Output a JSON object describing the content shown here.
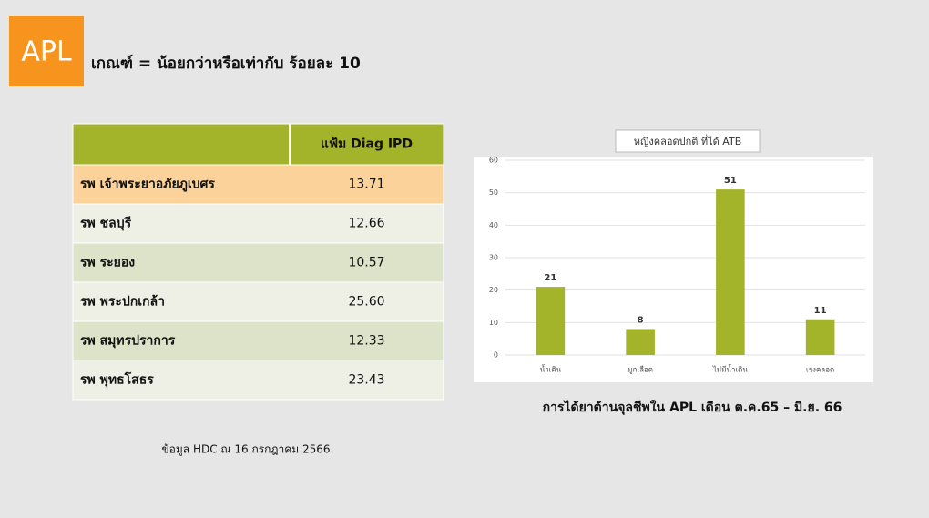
{
  "header": {
    "badge": "APL",
    "title": "เกณฑ์ = น้อยกว่าหรือเท่ากับ ร้อยละ 10"
  },
  "table": {
    "header": "แฟ้ม Diag IPD",
    "rows": [
      [
        "รพ เจ้าพระยาอภัยภูเบศร",
        "13.71"
      ],
      [
        "รพ ชลบุรี",
        "12.66"
      ],
      [
        "รพ ระยอง",
        "10.57"
      ],
      [
        "รพ พระปกเกล้า",
        "25.60"
      ],
      [
        "รพ สมุทรปราการ",
        "12.33"
      ],
      [
        "รพ พุทธโสธร",
        "23.43"
      ]
    ]
  },
  "note": "ข้อมูล HDC ณ 16 กรกฎาคม 2566",
  "chart_data": {
    "type": "bar",
    "title": "หญิงคลอดปกติ ที่ได้ ATB",
    "categories": [
      "น้ำเดิน",
      "มูกเลือด",
      "ไม่มีน้ำเดิน",
      "เร่งคลอด"
    ],
    "values": [
      21,
      8,
      51,
      11
    ],
    "color": "#a3b32a",
    "ylim": [
      0,
      60
    ],
    "yticks": [
      0,
      10,
      20,
      30,
      40,
      50,
      60
    ],
    "grid": true,
    "caption": "การได้ยาต้านจุลชีพใน APL เดือน ต.ค.65 – มิ.ย. 66"
  }
}
